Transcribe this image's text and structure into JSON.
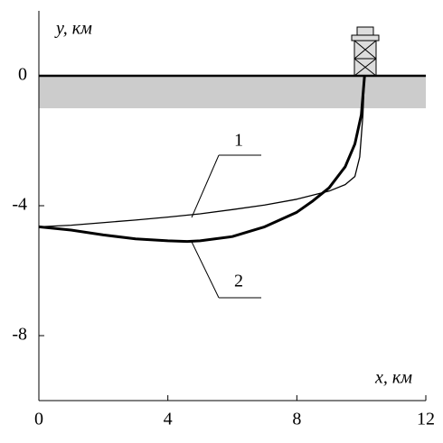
{
  "chart_data": {
    "type": "line",
    "xlabel": "x, км",
    "ylabel": "y, км",
    "xlim": [
      0,
      12
    ],
    "ylim": [
      -10,
      2
    ],
    "xticks": [
      0,
      4,
      8,
      12
    ],
    "yticks": [
      -8,
      -4,
      0
    ],
    "shaded_band": [
      -1,
      0
    ],
    "series": [
      {
        "name": "1",
        "color": "#000000",
        "x": [
          0,
          1,
          2,
          3,
          4,
          5,
          6,
          7,
          8,
          9,
          9.5,
          9.8,
          9.95,
          10.05,
          10.1
        ],
        "values": [
          -4.65,
          -4.6,
          -4.52,
          -4.44,
          -4.35,
          -4.25,
          -4.12,
          -3.98,
          -3.8,
          -3.55,
          -3.35,
          -3.1,
          -2.5,
          -1.2,
          0
        ]
      },
      {
        "name": "2",
        "color": "#000000",
        "x": [
          0,
          1,
          2,
          3,
          4,
          4.6,
          5,
          6,
          7,
          8,
          8.5,
          9,
          9.5,
          9.8,
          10,
          10.1
        ],
        "values": [
          -4.65,
          -4.75,
          -4.9,
          -5.02,
          -5.08,
          -5.1,
          -5.08,
          -4.95,
          -4.65,
          -4.2,
          -3.85,
          -3.45,
          -2.8,
          -2.1,
          -1.2,
          0
        ]
      }
    ]
  }
}
